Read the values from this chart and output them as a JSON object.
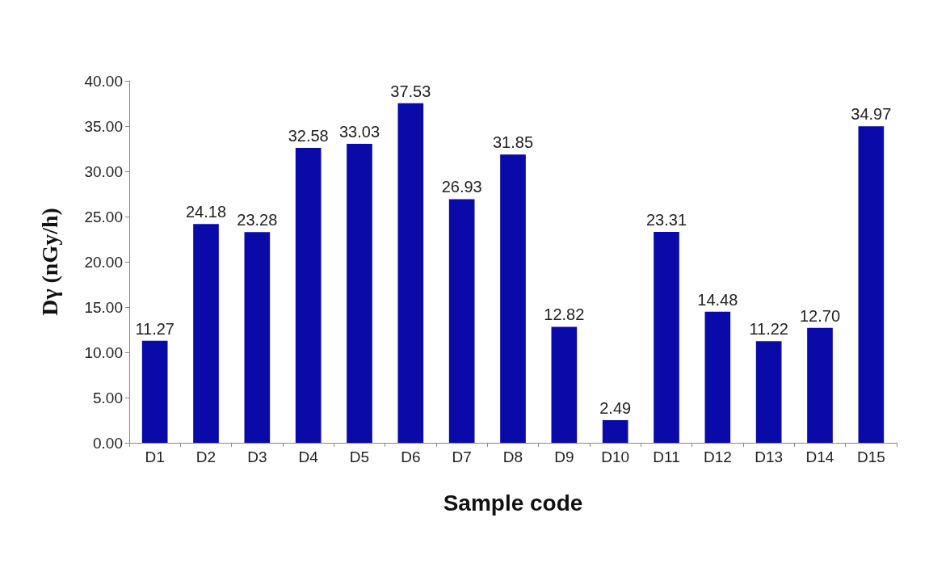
{
  "chart_data": {
    "type": "bar",
    "xlabel": "Sample code",
    "ylabel": "Dγ (nGy/h)",
    "categories": [
      "D1",
      "D2",
      "D3",
      "D4",
      "D5",
      "D6",
      "D7",
      "D8",
      "D9",
      "D10",
      "D11",
      "D12",
      "D13",
      "D14",
      "D15"
    ],
    "values": [
      11.27,
      24.18,
      23.28,
      32.58,
      33.03,
      37.53,
      26.93,
      31.85,
      12.82,
      2.49,
      23.31,
      14.48,
      11.22,
      12.7,
      34.97
    ],
    "value_labels": [
      "11.27",
      "24.18",
      "23.28",
      "32.58",
      "33.03",
      "37.53",
      "26.93",
      "31.85",
      "12.82",
      "2.49",
      "23.31",
      "14.48",
      "11.22",
      "12.70",
      "34.97"
    ],
    "color": "#0a0aa8",
    "ylim": [
      0,
      40
    ],
    "yticks": [
      {
        "value": 0,
        "label": "0.00"
      },
      {
        "value": 5,
        "label": "5.00"
      },
      {
        "value": 10,
        "label": "10.00"
      },
      {
        "value": 15,
        "label": "15.00"
      },
      {
        "value": 20,
        "label": "20.00"
      },
      {
        "value": 25,
        "label": "25.00"
      },
      {
        "value": 30,
        "label": "30.00"
      },
      {
        "value": 35,
        "label": "35.00"
      },
      {
        "value": 40,
        "label": "40.00"
      }
    ],
    "grid": false
  }
}
